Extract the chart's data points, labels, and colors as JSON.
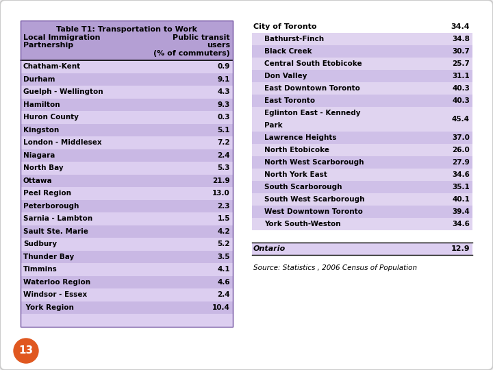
{
  "title": "Table T1: Transportation to Work",
  "col_header_left": "Local Immigration\nPartnership",
  "col_header_right": "Public transit\nusers\n(% of commuters)",
  "left_rows": [
    [
      "Chatham-Kent",
      "0.9"
    ],
    [
      "Durham",
      "9.1"
    ],
    [
      "Guelph - Wellington",
      "4.3"
    ],
    [
      "Hamilton",
      "9.3"
    ],
    [
      "Huron County",
      "0.3"
    ],
    [
      "Kingston",
      "5.1"
    ],
    [
      "London - Middlesex",
      "7.2"
    ],
    [
      "Niagara",
      "2.4"
    ],
    [
      "North Bay",
      "5.3"
    ],
    [
      "Ottawa",
      "21.9"
    ],
    [
      "Peel Region",
      "13.0"
    ],
    [
      "Peterborough",
      "2.3"
    ],
    [
      "Sarnia - Lambton",
      "1.5"
    ],
    [
      "Sault Ste. Marie",
      "4.2"
    ],
    [
      "Sudbury",
      "5.2"
    ],
    [
      "Thunder Bay",
      "3.5"
    ],
    [
      "Timmins",
      "4.1"
    ],
    [
      "Waterloo Region",
      "4.6"
    ],
    [
      "Windsor - Essex",
      "2.4"
    ],
    [
      " York Region",
      "10.4"
    ]
  ],
  "right_top_row": [
    "City of Toronto",
    "34.4"
  ],
  "right_rows": [
    [
      "Bathurst-Finch",
      "34.8"
    ],
    [
      "Black Creek",
      "30.7"
    ],
    [
      "Central South Etobicoke",
      "25.7"
    ],
    [
      "Don Valley",
      "31.1"
    ],
    [
      "East Downtown Toronto",
      "40.3"
    ],
    [
      "East Toronto",
      "40.3"
    ],
    [
      "Eglinton East - Kennedy\nPark",
      "45.4"
    ],
    [
      "Lawrence Heights",
      "37.0"
    ],
    [
      "North Etobicoke",
      "26.0"
    ],
    [
      "North West Scarborough",
      "27.9"
    ],
    [
      "North York East",
      "34.6"
    ],
    [
      "South Scarborough",
      "35.1"
    ],
    [
      "South West Scarborough",
      "40.1"
    ],
    [
      "West Downtown Toronto",
      "39.4"
    ],
    [
      "York South-Weston",
      "34.6"
    ]
  ],
  "ontario_row": [
    "Ontario",
    "12.9"
  ],
  "source_text": "Source: Statistics , 2006 Census of Population",
  "slide_bg": "#f0eff0",
  "left_header_bg": "#b49fd4",
  "left_row_light": "#dccef0",
  "left_row_dark": "#c9b8e4",
  "right_row_light": "#e0d4f0",
  "right_row_dark": "#cfc0e8",
  "right_top_bg": "#ffffff",
  "ontario_bg": "#dccef0",
  "page_number": "13",
  "page_num_color": "#e05820"
}
